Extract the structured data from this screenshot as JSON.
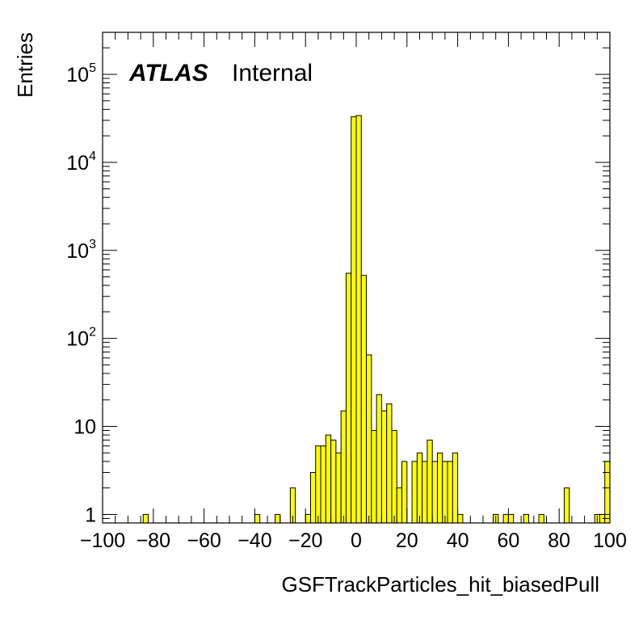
{
  "chart_data": {
    "type": "bar",
    "histogram": true,
    "xlabel": "GSFTrackParticles_hit_biasedPull",
    "ylabel": "Entries",
    "label": {
      "experiment": "ATLAS",
      "status": "Internal"
    },
    "xlim": [
      -100,
      100
    ],
    "ylim": [
      0.8,
      300000
    ],
    "yscale": "log",
    "x_ticks": [
      -100,
      -80,
      -60,
      -40,
      -20,
      0,
      20,
      40,
      60,
      80,
      100
    ],
    "x_tick_labels": [
      "−100",
      "−80",
      "−60",
      "−40",
      "−20",
      "0",
      "20",
      "40",
      "60",
      "80",
      "100"
    ],
    "y_ticks": [
      {
        "value": 1,
        "base": "1",
        "exp": ""
      },
      {
        "value": 10,
        "base": "10",
        "exp": ""
      },
      {
        "value": 100,
        "base": "10",
        "exp": "2"
      },
      {
        "value": 1000,
        "base": "10",
        "exp": "3"
      },
      {
        "value": 10000,
        "base": "10",
        "exp": "4"
      },
      {
        "value": 100000,
        "base": "10",
        "exp": "5"
      }
    ],
    "bin_width": 2,
    "bins": [
      {
        "x": -84,
        "y": 1
      },
      {
        "x": -40,
        "y": 1
      },
      {
        "x": -32,
        "y": 1
      },
      {
        "x": -26,
        "y": 2
      },
      {
        "x": -20,
        "y": 1
      },
      {
        "x": -18,
        "y": 3
      },
      {
        "x": -16,
        "y": 6
      },
      {
        "x": -14,
        "y": 6
      },
      {
        "x": -12,
        "y": 8
      },
      {
        "x": -10,
        "y": 7
      },
      {
        "x": -8,
        "y": 5
      },
      {
        "x": -6,
        "y": 15
      },
      {
        "x": -4,
        "y": 550
      },
      {
        "x": -2,
        "y": 33000
      },
      {
        "x": 0,
        "y": 34000
      },
      {
        "x": 2,
        "y": 520
      },
      {
        "x": 4,
        "y": 65
      },
      {
        "x": 6,
        "y": 9
      },
      {
        "x": 8,
        "y": 23
      },
      {
        "x": 10,
        "y": 15
      },
      {
        "x": 12,
        "y": 18
      },
      {
        "x": 14,
        "y": 9
      },
      {
        "x": 16,
        "y": 2
      },
      {
        "x": 18,
        "y": 4
      },
      {
        "x": 22,
        "y": 4
      },
      {
        "x": 24,
        "y": 5
      },
      {
        "x": 26,
        "y": 4
      },
      {
        "x": 28,
        "y": 7
      },
      {
        "x": 30,
        "y": 4
      },
      {
        "x": 32,
        "y": 5
      },
      {
        "x": 34,
        "y": 4
      },
      {
        "x": 36,
        "y": 4
      },
      {
        "x": 38,
        "y": 5
      },
      {
        "x": 40,
        "y": 1
      },
      {
        "x": 54,
        "y": 1
      },
      {
        "x": 58,
        "y": 1
      },
      {
        "x": 60,
        "y": 1
      },
      {
        "x": 66,
        "y": 1
      },
      {
        "x": 72,
        "y": 1
      },
      {
        "x": 82,
        "y": 2
      },
      {
        "x": 94,
        "y": 1
      },
      {
        "x": 96,
        "y": 1
      },
      {
        "x": 98,
        "y": 4
      }
    ],
    "fill_color": "#ffff00",
    "edge_color": "#000000",
    "grid": false
  }
}
